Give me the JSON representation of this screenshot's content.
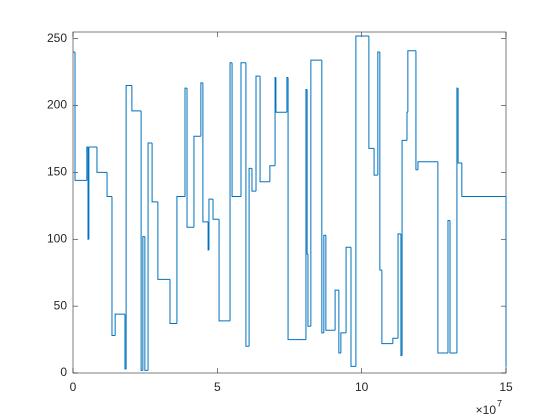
{
  "chart_data": {
    "type": "stairs",
    "color": "#0072bd",
    "x": [
      0,
      0.07,
      0.48,
      0.52,
      0.55,
      0.83,
      1.18,
      1.35,
      1.46,
      1.8,
      1.84,
      2.04,
      2.36,
      2.42,
      2.49,
      2.6,
      2.74,
      2.94,
      3.36,
      3.6,
      3.88,
      3.95,
      4.19,
      4.43,
      4.5,
      4.68,
      4.71,
      4.85,
      5.06,
      5.44,
      5.51,
      5.82,
      5.99,
      6.1,
      6.2,
      6.34,
      6.48,
      6.82,
      7.0,
      7.03,
      7.41,
      7.45,
      8.07,
      8.11,
      8.14,
      8.24,
      8.62,
      8.69,
      8.76,
      9.08,
      9.21,
      9.28,
      9.46,
      9.63,
      9.8,
      10.25,
      10.43,
      10.56,
      10.63,
      10.7,
      11.08,
      11.26,
      11.36,
      11.4,
      11.57,
      11.6,
      11.88,
      11.95,
      12.64,
      12.99,
      13.06,
      13.3,
      13.34,
      13.47,
      15
    ],
    "values": [
      240,
      144,
      169,
      100,
      169,
      150,
      132,
      28,
      44,
      3,
      215,
      196,
      2,
      102,
      2,
      172,
      128,
      70,
      37,
      132,
      213,
      109,
      177,
      217,
      113,
      92,
      130,
      115,
      39,
      232,
      132,
      232,
      20,
      153,
      136,
      222,
      143,
      155,
      221,
      195,
      221,
      25,
      212,
      89,
      35,
      234,
      30,
      103,
      32,
      62,
      15,
      30,
      94,
      5,
      252,
      168,
      148,
      240,
      77,
      22,
      26,
      104,
      13,
      174,
      195,
      241,
      152,
      158,
      15,
      114,
      15,
      213,
      157,
      132,
      5
    ],
    "xlim": [
      0,
      15
    ],
    "xticks": [
      0,
      5,
      10,
      15
    ],
    "ylim": [
      0,
      255
    ],
    "yticks": [
      0,
      50,
      100,
      150,
      200,
      250
    ],
    "x_multiplier_base": "×10",
    "x_multiplier_exponent": "7",
    "grid": false
  }
}
